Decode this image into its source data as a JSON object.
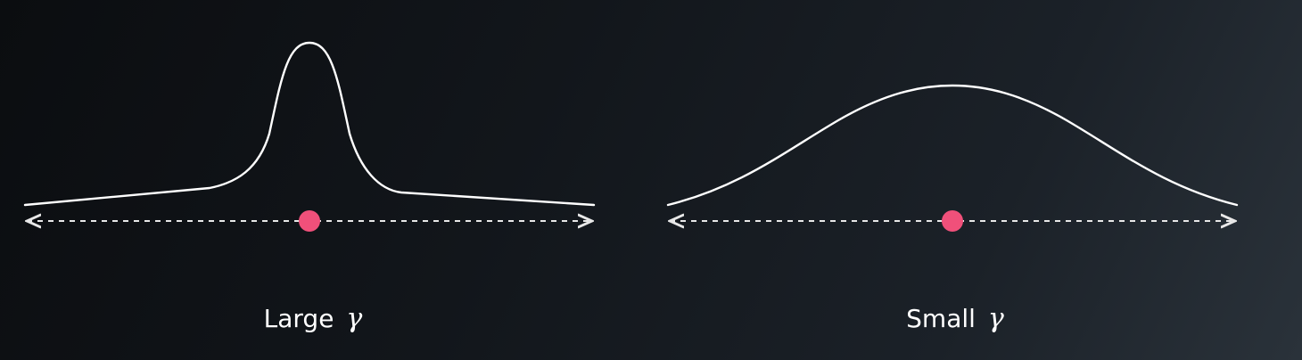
{
  "colors": {
    "curve": "#ffffff",
    "axis": "#e8e8e8",
    "point": "#f0507a"
  },
  "panels": [
    {
      "caption_word": "Large",
      "caption_symbol": "γ",
      "curve_shape": "narrow-peak"
    },
    {
      "caption_word": "Small",
      "caption_symbol": "γ",
      "curve_shape": "wide-bell"
    }
  ]
}
